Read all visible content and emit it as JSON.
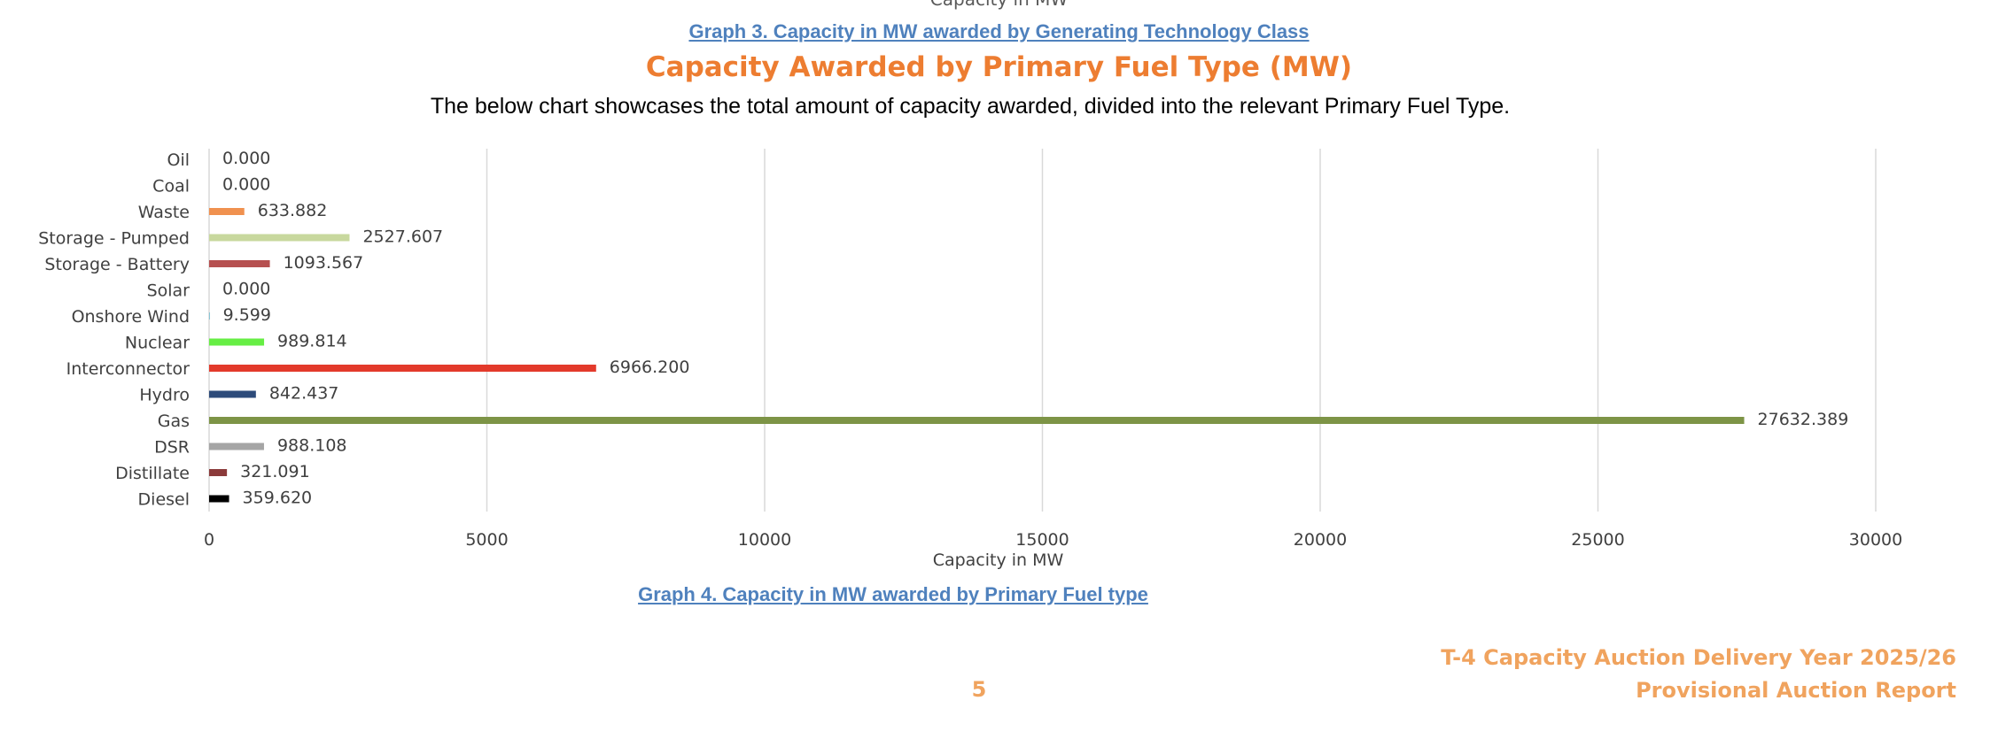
{
  "prev_axis_label": "Capacity in MW",
  "caption_top": "Graph 3. Capacity in MW awarded by Generating Technology Class",
  "section_title": "Capacity Awarded by Primary Fuel Type (MW)",
  "section_description": "The below chart showcases the total amount of capacity awarded, divided into the relevant Primary Fuel Type.",
  "caption_bottom": "Graph 4. Capacity in MW awarded by Primary Fuel type",
  "footer": {
    "report_line1": "T-4 Capacity Auction Delivery Year 2025/26",
    "report_line2": "Provisional Auction Report",
    "page_number": "5"
  },
  "chart_data": {
    "type": "bar",
    "orientation": "horizontal",
    "title": "",
    "xlabel": "Capacity in MW",
    "ylabel": "",
    "xlim": [
      0,
      30000
    ],
    "xticks": [
      0,
      5000,
      10000,
      15000,
      20000,
      25000,
      30000
    ],
    "grid": "vertical",
    "legend": "none",
    "categories": [
      "Oil",
      "Coal",
      "Waste",
      "Storage - Pumped",
      "Storage - Battery",
      "Solar",
      "Onshore Wind",
      "Nuclear",
      "Interconnector",
      "Hydro",
      "Gas",
      "DSR",
      "Distillate",
      "Diesel"
    ],
    "values": [
      0.0,
      0.0,
      633.882,
      2527.607,
      1093.567,
      0.0,
      9.599,
      989.814,
      6966.2,
      842.437,
      27632.389,
      988.108,
      321.091,
      359.62
    ],
    "data_labels": [
      "0.000",
      "0.000",
      "633.882",
      "2527.607",
      "1093.567",
      "0.000",
      "9.599",
      "989.814",
      "6966.200",
      "842.437",
      "27632.389",
      "988.108",
      "321.091",
      "359.620"
    ],
    "colors": [
      "#f79646",
      "#4f81bd",
      "#f0914f",
      "#c8d89e",
      "#b65050",
      "#f2c744",
      "#4bacc6",
      "#66ee44",
      "#e33a2b",
      "#2d4b7a",
      "#7d9446",
      "#a5a5a5",
      "#8b3a3a",
      "#000000"
    ]
  }
}
